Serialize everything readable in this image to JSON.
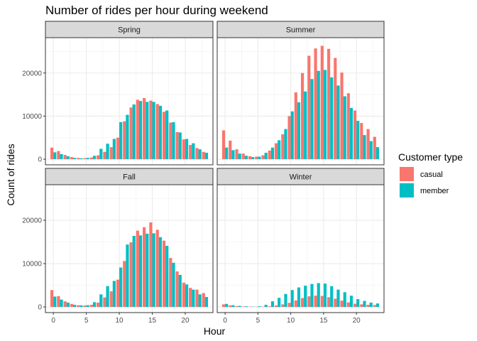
{
  "chart_data": {
    "type": "bar",
    "title": "Number of rides per hour during weekend",
    "xlabel": "Hour",
    "ylabel": "Count of rides",
    "xlim": [
      -1.2,
      24.2
    ],
    "ylim": [
      -1300,
      28200
    ],
    "x_ticks": [
      0,
      5,
      10,
      15,
      20
    ],
    "y_ticks": [
      0,
      10000,
      20000
    ],
    "grid": true,
    "legend": {
      "title": "Customer type",
      "position": "right",
      "entries": [
        {
          "name": "casual",
          "color": "#F8766D"
        },
        {
          "name": "member",
          "color": "#00BFC4"
        }
      ]
    },
    "hours": [
      0,
      1,
      2,
      3,
      4,
      5,
      6,
      7,
      8,
      9,
      10,
      11,
      12,
      13,
      14,
      15,
      16,
      17,
      18,
      19,
      20,
      21,
      22,
      23
    ],
    "panels": [
      {
        "label": "Spring",
        "series": [
          {
            "name": "casual",
            "values": [
              2700,
              1900,
              1000,
              500,
              300,
              250,
              400,
              900,
              1700,
              2800,
              5000,
              8800,
              12000,
              13800,
              14200,
              13600,
              12800,
              11000,
              8500,
              6300,
              4600,
              3300,
              2600,
              1700
            ]
          },
          {
            "name": "member",
            "values": [
              1600,
              1200,
              700,
              300,
              200,
              300,
              800,
              2400,
              3600,
              4700,
              8600,
              10300,
              12700,
              13500,
              13300,
              13300,
              12400,
              11300,
              8600,
              6200,
              4700,
              3700,
              2300,
              1500
            ]
          }
        ]
      },
      {
        "label": "Summer",
        "series": [
          {
            "name": "casual",
            "values": [
              6700,
              4300,
              2300,
              1300,
              700,
              600,
              900,
              2000,
              3700,
              5800,
              10000,
              15500,
              20000,
              24000,
              25700,
              26300,
              25600,
              23500,
              20100,
              15300,
              11300,
              8400,
              7000,
              5200
            ]
          },
          {
            "name": "member",
            "values": [
              2700,
              2100,
              1300,
              800,
              500,
              600,
              1500,
              2700,
              4400,
              7000,
              11100,
              13200,
              15700,
              18600,
              20500,
              20700,
              19000,
              17100,
              14600,
              11900,
              8900,
              5600,
              4200,
              2800
            ]
          }
        ]
      },
      {
        "label": "Fall",
        "series": [
          {
            "name": "casual",
            "values": [
              3900,
              2500,
              1300,
              700,
              400,
              350,
              500,
              1000,
              2200,
              3600,
              6300,
              10600,
              14900,
              17600,
              18400,
              19500,
              17800,
              15300,
              11300,
              8200,
              5600,
              4400,
              4000,
              3200
            ]
          },
          {
            "name": "member",
            "values": [
              2400,
              1700,
              1000,
              500,
              350,
              400,
              1100,
              2900,
              4800,
              6000,
              9100,
              14400,
              16400,
              16500,
              16900,
              17000,
              16100,
              14100,
              10200,
              7400,
              5200,
              4000,
              2900,
              2300
            ]
          }
        ]
      },
      {
        "label": "Winter",
        "series": [
          {
            "name": "casual",
            "values": [
              600,
              350,
              200,
              100,
              60,
              50,
              80,
              150,
              350,
              600,
              950,
              1500,
              2050,
              2450,
              2600,
              2550,
              2250,
              1900,
              1450,
              1050,
              750,
              600,
              500,
              450
            ]
          },
          {
            "name": "member",
            "values": [
              700,
              400,
              250,
              150,
              80,
              150,
              500,
              1300,
              2100,
              3000,
              3900,
              4500,
              4900,
              5300,
              5500,
              5400,
              4800,
              4000,
              3400,
              2600,
              1800,
              1400,
              1000,
              800
            ]
          }
        ]
      }
    ]
  }
}
